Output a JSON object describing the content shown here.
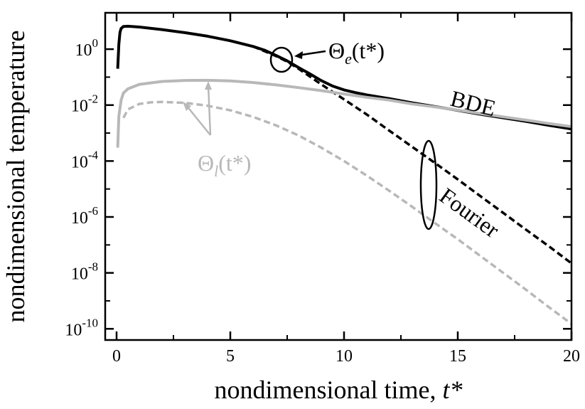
{
  "chart_data": {
    "type": "line",
    "xlabel": "nondimensional time, ",
    "xlabel_italic": "t*",
    "ylabel": "nondimensional temperature",
    "xlim": [
      -0.5,
      20
    ],
    "ylim_log10": [
      -10.4,
      1.3
    ],
    "y_scale": "log",
    "x_ticks": [
      0,
      5,
      10,
      15,
      20
    ],
    "x_tick_labels": [
      "0",
      "5",
      "10",
      "15",
      "20"
    ],
    "y_ticks_exp": [
      0,
      -2,
      -4,
      -6,
      -8,
      -10
    ],
    "y_tick_base": "10",
    "y_tick_exps": [
      "0",
      "-2",
      "-4",
      "-6",
      "-8",
      "-10"
    ],
    "grid": false,
    "colors": {
      "black": "#000000",
      "gray": "#b8b8b8"
    },
    "series": [
      {
        "name": "Θe(t*) BDE",
        "color": "#000000",
        "dash": "solid",
        "x": [
          0.05,
          0.1,
          0.15,
          0.2,
          0.3,
          0.5,
          1,
          2,
          3,
          4,
          5,
          6,
          6.5,
          7,
          7.5,
          8,
          8.5,
          9,
          9.5,
          10,
          10.5,
          11,
          12,
          13,
          14,
          15,
          16,
          17,
          18,
          19,
          20
        ],
        "y": [
          0.2,
          1.5,
          4,
          5.5,
          6.5,
          6.6,
          6.2,
          5.0,
          3.9,
          2.9,
          2.0,
          1.25,
          0.92,
          0.6,
          0.38,
          0.22,
          0.13,
          0.075,
          0.048,
          0.035,
          0.028,
          0.023,
          0.017,
          0.012,
          0.0088,
          0.0065,
          0.0047,
          0.0035,
          0.0026,
          0.0019,
          0.0014
        ]
      },
      {
        "name": "Θe(t*) Fourier",
        "color": "#000000",
        "dash": "dashed",
        "x": [
          6,
          6.5,
          7,
          7.5,
          8,
          9,
          10,
          11,
          12,
          13,
          14,
          15,
          16,
          17,
          18,
          19,
          20
        ],
        "y": [
          1.25,
          0.85,
          0.57,
          0.36,
          0.2,
          0.055,
          0.016,
          0.0046,
          0.0012,
          0.00032,
          8.5e-05,
          2.2e-05,
          5.5e-06,
          1.4e-06,
          3.5e-07,
          9e-08,
          2.2e-08
        ]
      },
      {
        "name": "Θl(t*) BDE",
        "color": "#b8b8b8",
        "dash": "solid",
        "x": [
          0.05,
          0.1,
          0.2,
          0.3,
          0.5,
          1,
          2,
          3,
          4,
          5,
          6,
          7,
          8,
          9,
          10,
          11,
          12,
          13,
          14,
          15,
          16,
          17,
          18,
          19,
          20
        ],
        "y": [
          0.0003,
          0.004,
          0.015,
          0.027,
          0.038,
          0.055,
          0.07,
          0.076,
          0.077,
          0.073,
          0.064,
          0.053,
          0.042,
          0.033,
          0.025,
          0.019,
          0.015,
          0.011,
          0.0086,
          0.0066,
          0.005,
          0.0038,
          0.0029,
          0.0022,
          0.0017
        ]
      },
      {
        "name": "Θl(t*) Fourier",
        "color": "#b8b8b8",
        "dash": "dashed",
        "x": [
          0.3,
          0.5,
          1,
          1.5,
          2,
          3,
          4,
          5,
          6,
          7,
          8,
          9,
          10,
          11,
          12,
          13,
          14,
          15,
          16,
          17,
          18,
          19,
          20
        ],
        "y": [
          0.0035,
          0.007,
          0.011,
          0.0125,
          0.013,
          0.012,
          0.0095,
          0.0065,
          0.0038,
          0.0019,
          0.00082,
          0.0003,
          0.0001,
          3e-05,
          8.5e-06,
          2.3e-06,
          6e-07,
          1.6e-07,
          4e-08,
          1e-08,
          2.5e-09,
          6e-10,
          1.5e-10
        ]
      }
    ],
    "annotations": {
      "theta_e": {
        "base": "Θ",
        "sub": "e",
        "args": "(t*)",
        "color": "#000000"
      },
      "theta_l": {
        "base": "Θ",
        "sub": "l",
        "args": "(t*)",
        "color": "#b8b8b8"
      },
      "bde": "BDE",
      "fourier": "Fourier"
    }
  }
}
